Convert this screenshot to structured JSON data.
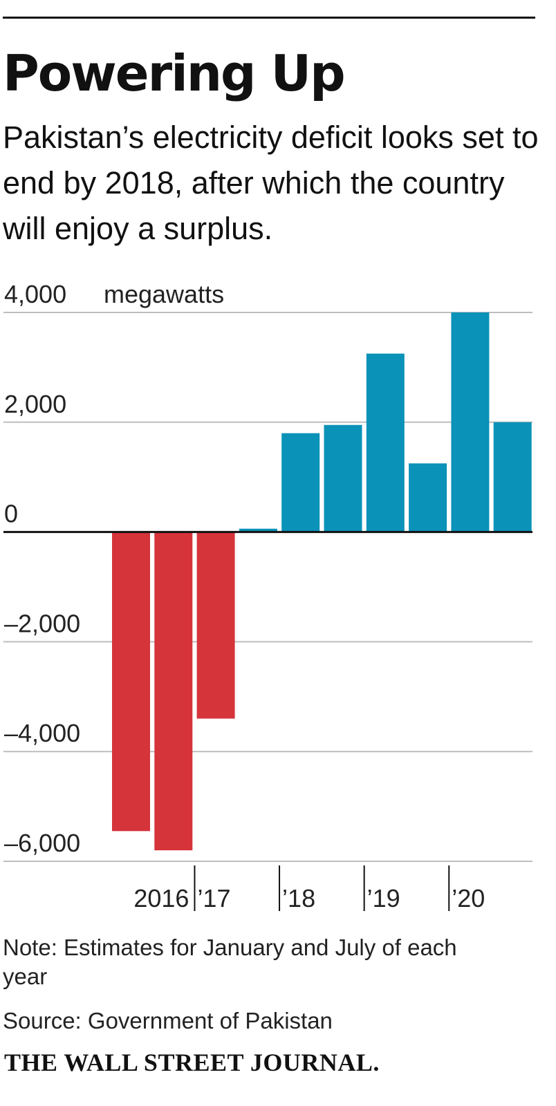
{
  "header": {
    "title": "Powering Up",
    "subtitle": "Pakistan’s electricity deficit looks set to end by 2018, after which the country will enjoy a surplus."
  },
  "chart_data": {
    "type": "bar",
    "title": "Powering Up",
    "subtitle": "Pakistan’s electricity deficit looks set to end by 2018, after which the country will enjoy a surplus.",
    "ylabel": "megawatts",
    "ylim": [
      -6000,
      4000
    ],
    "y_ticks": [
      {
        "value": 4000,
        "label": "4,000"
      },
      {
        "value": 2000,
        "label": "2,000"
      },
      {
        "value": 0,
        "label": "0"
      },
      {
        "value": -2000,
        "label": "–2,000"
      },
      {
        "value": -4000,
        "label": "–4,000"
      },
      {
        "value": -6000,
        "label": "–6,000"
      }
    ],
    "y_unit_label": "megawatts",
    "categories": [
      "Jan 2016",
      "Jul 2016",
      "Jan 2017",
      "Jul 2017",
      "Jan 2018",
      "Jul 2018",
      "Jan 2019",
      "Jul 2019",
      "Jan 2020",
      "Jul 2020"
    ],
    "values": [
      -5450,
      -5800,
      -3400,
      60,
      1800,
      1950,
      3250,
      1250,
      4000,
      2000
    ],
    "x_labels": [
      {
        "label": "2016",
        "bar_index": 0.5
      },
      {
        "label": "’17",
        "bar_index": 2.5
      },
      {
        "label": "’18",
        "bar_index": 4.5
      },
      {
        "label": "’19",
        "bar_index": 6.5
      },
      {
        "label": "’20",
        "bar_index": 8.5
      }
    ],
    "x_tick_boundaries": [
      2,
      4,
      6,
      8
    ],
    "colors": {
      "negative": "#d5343b",
      "positive": "#0a92b8",
      "grid": "#bdbdbd",
      "zero_line": "#111111"
    },
    "grid": true,
    "legend": "none"
  },
  "footer": {
    "note": "Note: Estimates for January and July of each year",
    "source": "Source: Government of Pakistan",
    "brand": "THE WALL STREET JOURNAL."
  }
}
